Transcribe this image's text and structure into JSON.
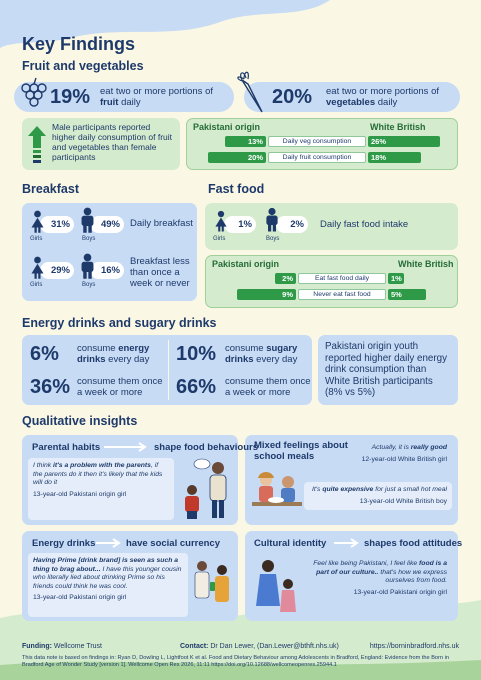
{
  "title": "Key Findings",
  "labels": {
    "girls": "Girls",
    "boys": "Boys"
  },
  "fruit_veg": {
    "heading": "Fruit and vegetables",
    "fruit": {
      "value": "19%",
      "text": [
        "eat two or more portions of ",
        {
          "text": "fruit",
          "bold": true
        },
        " daily"
      ]
    },
    "vegetables": {
      "value": "20%",
      "text": [
        "eat two or more portions of ",
        {
          "text": "vegetables",
          "bold": true
        },
        " daily"
      ]
    },
    "gender_note": "Male participants reported higher daily consumption of fruit and vegetables than female participants",
    "comparison": {
      "left_header": "Pakistani origin",
      "right_header": "White British",
      "rows": [
        {
          "left": {
            "value": 13,
            "label": "13%"
          },
          "label": "Daily veg consumption",
          "right": {
            "value": 26,
            "label": "26%"
          }
        },
        {
          "left": {
            "value": 20,
            "label": "20%"
          },
          "label": "Daily fruit consumption",
          "right": {
            "value": 18,
            "label": "18%"
          }
        }
      ]
    }
  },
  "breakfast": {
    "heading": "Breakfast",
    "rows": [
      {
        "girls": "31%",
        "boys": "49%",
        "label": "Daily breakfast"
      },
      {
        "girls": "29%",
        "boys": "16%",
        "label": "Breakfast less than once a week or never"
      }
    ]
  },
  "fast_food": {
    "heading": "Fast food",
    "girls": "1%",
    "boys": "2%",
    "label": "Daily fast food intake",
    "comparison": {
      "left_header": "Pakistani origin",
      "right_header": "White British",
      "rows": [
        {
          "left": {
            "value": 2,
            "label": "2%"
          },
          "label": "Eat fast food daily",
          "right": {
            "value": 1,
            "label": "1%"
          }
        },
        {
          "left": {
            "value": 9,
            "label": "9%"
          },
          "label": "Never eat fast food",
          "right": {
            "value": 5,
            "label": "5%"
          }
        }
      ]
    }
  },
  "energy": {
    "heading": "Energy drinks and sugary drinks",
    "items": [
      {
        "value": "6%",
        "text": [
          "consume ",
          {
            "text": "energy drinks",
            "bold": true
          },
          " every day"
        ]
      },
      {
        "value": "36%",
        "text": [
          "consume them once a week or more"
        ]
      },
      {
        "value": "10%",
        "text": [
          "consume ",
          {
            "text": "sugary drinks",
            "bold": true
          },
          " every day"
        ]
      },
      {
        "value": "66%",
        "text": [
          "consume them once a week or more"
        ]
      }
    ],
    "note": "Pakistani origin youth reported higher daily energy drink consumption than White British participants (8% vs 5%)"
  },
  "qualitative": {
    "heading": "Qualitative insights",
    "cards": [
      {
        "title": "Parental habits",
        "subtitle": "shape food behaviours",
        "quotes": [
          {
            "text": [
              "I think ",
              {
                "text": "it's a problem with the parents",
                "bold": true
              },
              ", if the parents do it then it's likely that the kids will do it"
            ],
            "attribution": "13-year-old Pakistani origin girl"
          }
        ]
      },
      {
        "title": "Mixed feelings about school meals",
        "quotes": [
          {
            "text": [
              "Actually, it is ",
              {
                "text": "really good",
                "bold": true
              }
            ],
            "attribution": "12-year-old White British girl"
          },
          {
            "text": [
              "It's ",
              {
                "text": "quite expensive",
                "bold": true
              },
              " for just a small hot meal"
            ],
            "attribution": "13-year-old White British boy"
          }
        ]
      },
      {
        "title": "Energy drinks",
        "subtitle": "have social currency",
        "quotes": [
          {
            "text": [
              {
                "text": "Having Prime [drink brand] is seen as such a thing to brag about...",
                "bold": true
              },
              " I have this younger cousin who literally lied about drinking Prime so his friends could think he was cool."
            ],
            "attribution": "13-year-old Pakistani origin girl"
          }
        ]
      },
      {
        "title": "Cultural identity",
        "subtitle": "shapes food attitudes",
        "quotes": [
          {
            "text": [
              "Feel like being Pakistani, I feel like ",
              {
                "text": "food is a part of our culture..",
                "bold": true
              },
              " that's how we express ourselves from food."
            ],
            "attribution": "13-year-old Pakistani origin girl"
          }
        ]
      }
    ]
  },
  "footer": {
    "funding_label": "Funding:",
    "funding": "Wellcome Trust",
    "contact_label": "Contact:",
    "contact": "Dr Dan Lewer, (Dan.Lewer@bthft.nhs.uk)",
    "website": "https://borninbradford.nhs.uk",
    "note": "This data note is based on findings in: Ryan D, Dowling L, Lightfoot K et al. Food and Dietary Behaviour among Adolescents in Bradford, England: Evidence from the Born in Bradford Age of Wonder Study [version 1]. Wellcome Open Res 2026, 11:11 https://doi.org/10.12688/wellcomeopenres.25944.1"
  }
}
